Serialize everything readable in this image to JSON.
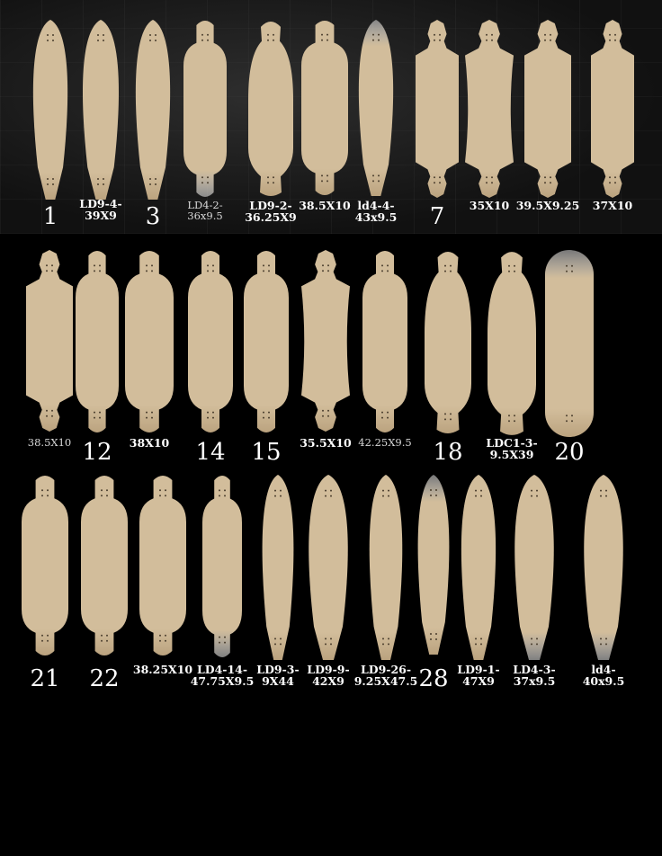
{
  "colors": {
    "deck": "#d2bd9b",
    "deck_shadow": "#bba37f",
    "background": "#000000",
    "label": "#ffffff"
  },
  "decks": [
    {
      "label": "1",
      "shape": "pintail"
    },
    {
      "label": "LD9-4-\n39X9",
      "shape": "pintail"
    },
    {
      "label": "3",
      "shape": "pintail"
    },
    {
      "label": "LD4-2-\n36x9.5",
      "shape": "dropthrough-notched"
    },
    {
      "label": "LD9-2-\n36.25X9",
      "shape": "cruiser-kick"
    },
    {
      "label": "38.5X10",
      "shape": "drop-tall"
    },
    {
      "label": "ld4-4-\n43x9.5",
      "shape": "pintail-faded"
    },
    {
      "label": "7",
      "shape": "drop-arrow"
    },
    {
      "label": "35X10",
      "shape": "drop-arrow-waisted"
    },
    {
      "label": "39.5X9.25",
      "shape": "drop-arrow"
    },
    {
      "label": "37X10",
      "shape": "drop-arrow"
    },
    {
      "label": "38.5X10",
      "shape": "drop-arrow"
    },
    {
      "label": "12",
      "shape": "drop-round"
    },
    {
      "label": "38X10",
      "shape": "drop-round"
    },
    {
      "label": "14",
      "shape": "drop-round"
    },
    {
      "label": "15",
      "shape": "drop-round"
    },
    {
      "label": "35.5X10",
      "shape": "drop-arrow-waisted"
    },
    {
      "label": "42.25X9.5",
      "shape": "drop-round"
    },
    {
      "label": "18",
      "shape": "cruiser-kick"
    },
    {
      "label": "LDC1-3-\n9.5X39",
      "shape": "cruiser-kick"
    },
    {
      "label": "20",
      "shape": "popsicle-faded"
    },
    {
      "label": "21",
      "shape": "drop-round"
    },
    {
      "label": "22",
      "shape": "drop-round"
    },
    {
      "label": "38.25X10",
      "shape": "drop-round"
    },
    {
      "label": "LD4-14-\n47.75X9.5",
      "shape": "dropthrough-faded"
    },
    {
      "label": "LD9-3-\n9X44",
      "shape": "pintail"
    },
    {
      "label": "LD9-9-\n42X9",
      "shape": "pintail"
    },
    {
      "label": "LD9-26-\n9.25X47.5",
      "shape": "pintail"
    },
    {
      "label": "28",
      "shape": "pintail-faded"
    },
    {
      "label": "LD9-1-\n47X9",
      "shape": "pintail"
    },
    {
      "label": "LD4-3-\n37x9.5",
      "shape": "pintail-faded-bottom"
    },
    {
      "label": "ld4-\n40x9.5",
      "shape": "pintail-faded-bottom"
    }
  ]
}
